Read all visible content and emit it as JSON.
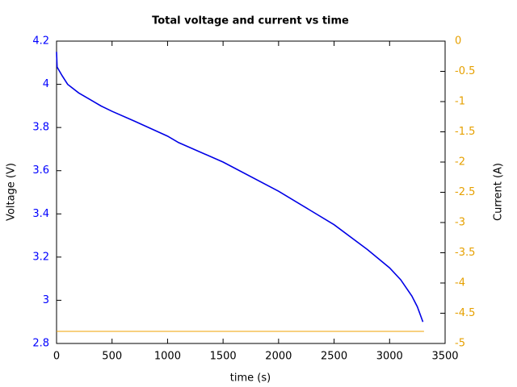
{
  "chart_data": {
    "type": "line",
    "title": "Total voltage and current vs time",
    "x_label": "time (s)",
    "y_label": "Voltage (V)",
    "y2_label": "Current (A)",
    "xlim": [
      0,
      3500
    ],
    "xticks": [
      0,
      500,
      1000,
      1500,
      2000,
      2500,
      3000,
      3500
    ],
    "ylim": [
      2.8,
      4.2
    ],
    "yticks": [
      2.8,
      3,
      3.2,
      3.4,
      3.6,
      3.8,
      4,
      4.2
    ],
    "y2lim": [
      -5,
      0
    ],
    "y2ticks": [
      -5,
      -4.5,
      -4,
      -3.5,
      -3,
      -2.5,
      -2,
      -1.5,
      -1,
      -0.5,
      0
    ],
    "y_color": "#0000ff",
    "y2_color": "#e6a000",
    "series": [
      {
        "color": "#0000e6",
        "axis": "y",
        "x": [
          0,
          5,
          50,
          100,
          200,
          300,
          400,
          500,
          700,
          1000,
          1100,
          1500,
          2000,
          2500,
          2800,
          3000,
          3100,
          3200,
          3250,
          3300
        ],
        "values": [
          4.15,
          4.08,
          4.04,
          4.0,
          3.96,
          3.93,
          3.9,
          3.875,
          3.83,
          3.76,
          3.73,
          3.64,
          3.505,
          3.35,
          3.235,
          3.15,
          3.095,
          3.02,
          2.97,
          2.9
        ]
      },
      {
        "color": "#f0a000",
        "axis": "y2",
        "x": [
          0,
          3310
        ],
        "values": [
          -4.8,
          -4.8
        ]
      }
    ]
  }
}
